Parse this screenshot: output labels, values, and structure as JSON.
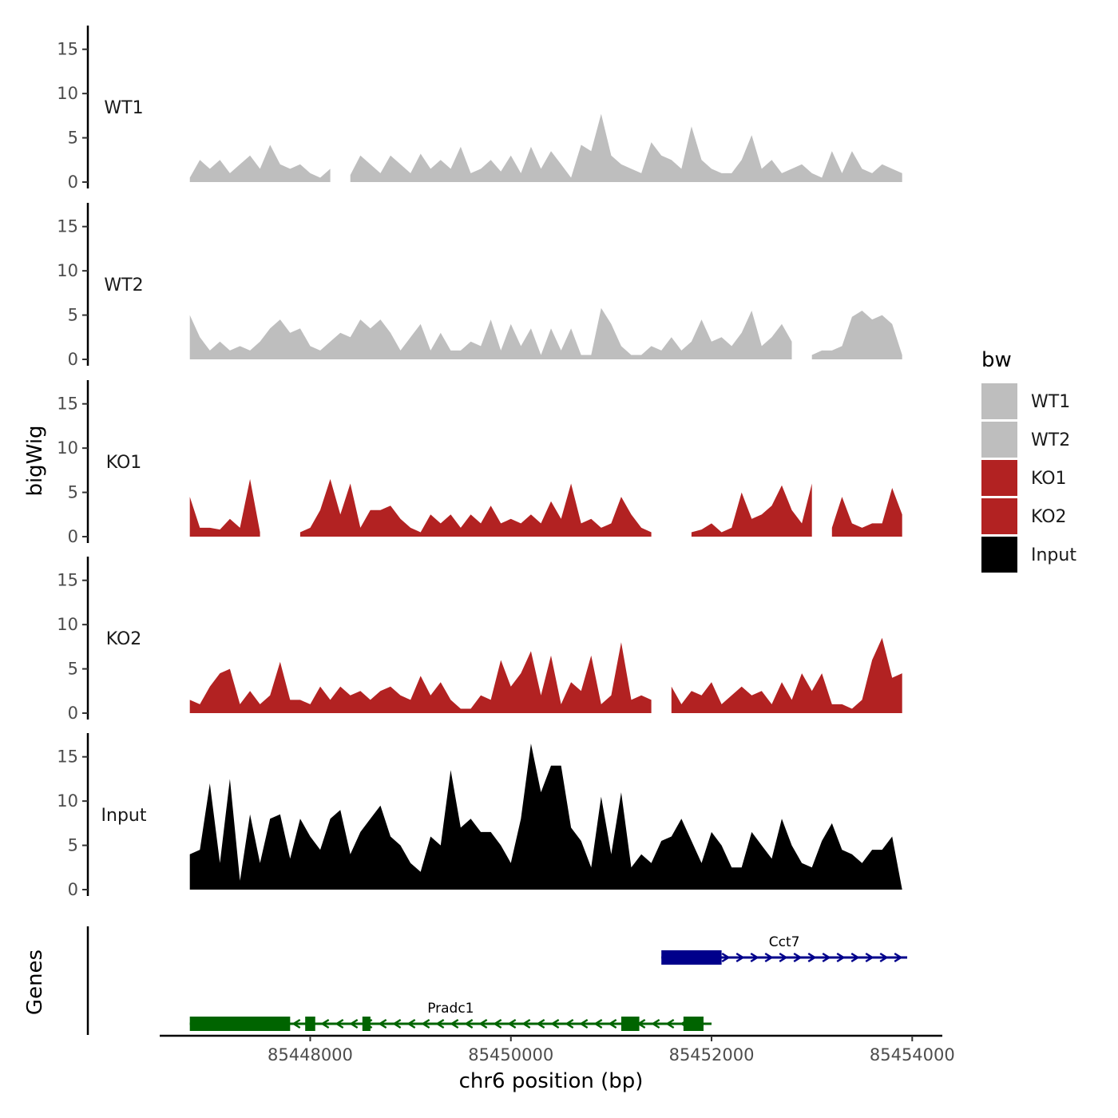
{
  "chart_data": {
    "type": "area",
    "chromosome": "chr6",
    "xlabel": "chr6 position (bp)",
    "ylabel": "bigWig",
    "genes_label": "Genes",
    "xlim": [
      85446500,
      85454300
    ],
    "xticks": [
      85448000,
      85450000,
      85452000,
      85454000
    ],
    "xtick_labels": [
      "85448000",
      "85450000",
      "85452000",
      "85454000"
    ],
    "ylim": [
      0,
      17.5
    ],
    "yticks": [
      0,
      5,
      10,
      15
    ],
    "ytick_labels": [
      "0",
      "5",
      "10",
      "15"
    ],
    "legend": {
      "title": "bw",
      "position": "right",
      "entries": [
        {
          "label": "WT1",
          "color": "#bebebe"
        },
        {
          "label": "WT2",
          "color": "#bebebe"
        },
        {
          "label": "KO1",
          "color": "#b22222"
        },
        {
          "label": "KO2",
          "color": "#b22222"
        },
        {
          "label": "Input",
          "color": "#000000"
        }
      ]
    },
    "series": [
      {
        "name": "WT1",
        "color": "#bebebe",
        "x": [
          85446800,
          85446900,
          85447000,
          85447100,
          85447200,
          85447300,
          85447400,
          85447500,
          85447600,
          85447700,
          85447800,
          85447900,
          85448000,
          85448100,
          85448200,
          85448300,
          85448400,
          85448500,
          85448600,
          85448700,
          85448800,
          85448900,
          85449000,
          85449100,
          85449200,
          85449300,
          85449400,
          85449500,
          85449600,
          85449700,
          85449800,
          85449900,
          85450000,
          85450100,
          85450200,
          85450300,
          85450400,
          85450500,
          85450600,
          85450700,
          85450800,
          85450900,
          85451000,
          85451100,
          85451200,
          85451300,
          85451400,
          85451500,
          85451600,
          85451700,
          85451800,
          85451900,
          85452000,
          85452100,
          85452200,
          85452300,
          85452400,
          85452500,
          85452600,
          85452700,
          85452800,
          85452900,
          85453000,
          85453100,
          85453200,
          85453300,
          85453400,
          85453500,
          85453600,
          85453700,
          85453800,
          85453900
        ],
        "values": [
          0.5,
          2.5,
          1.5,
          2.5,
          1.0,
          2.0,
          3.0,
          1.5,
          4.2,
          2.0,
          1.5,
          2.0,
          1.0,
          0.5,
          1.5,
          null,
          0.8,
          3.0,
          2.0,
          1.0,
          3.0,
          2.0,
          1.0,
          3.2,
          1.5,
          2.5,
          1.5,
          4.0,
          1.0,
          1.5,
          2.5,
          1.2,
          3.0,
          1.0,
          4.0,
          1.5,
          3.5,
          2.0,
          0.5,
          4.2,
          3.5,
          7.7,
          3.0,
          2.0,
          1.5,
          1.0,
          4.5,
          3.0,
          2.5,
          1.5,
          6.3,
          2.5,
          1.5,
          1.0,
          1.0,
          2.5,
          5.3,
          1.5,
          2.5,
          1.0,
          1.5,
          2.0,
          1.0,
          0.5,
          3.5,
          1.0,
          3.5,
          1.5,
          1.0,
          2.0,
          1.5,
          1.0
        ]
      },
      {
        "name": "WT2",
        "color": "#bebebe",
        "x": [
          85446800,
          85446900,
          85447000,
          85447100,
          85447200,
          85447300,
          85447400,
          85447500,
          85447600,
          85447700,
          85447800,
          85447900,
          85448000,
          85448100,
          85448200,
          85448300,
          85448400,
          85448500,
          85448600,
          85448700,
          85448800,
          85448900,
          85449000,
          85449100,
          85449200,
          85449300,
          85449400,
          85449500,
          85449600,
          85449700,
          85449800,
          85449900,
          85450000,
          85450100,
          85450200,
          85450300,
          85450400,
          85450500,
          85450600,
          85450700,
          85450800,
          85450900,
          85451000,
          85451100,
          85451200,
          85451300,
          85451400,
          85451500,
          85451600,
          85451700,
          85451800,
          85451900,
          85452000,
          85452100,
          85452200,
          85452300,
          85452400,
          85452500,
          85452600,
          85452700,
          85452800,
          85452900,
          85453000,
          85453100,
          85453200,
          85453300,
          85453400,
          85453500,
          85453600,
          85453700,
          85453800,
          85453900
        ],
        "values": [
          5.0,
          2.5,
          1.0,
          2.0,
          1.0,
          1.5,
          1.0,
          2.0,
          3.5,
          4.5,
          3.0,
          3.5,
          1.5,
          1.0,
          2.0,
          3.0,
          2.5,
          4.5,
          3.5,
          4.5,
          3.0,
          1.0,
          2.5,
          4.0,
          1.0,
          3.0,
          1.0,
          1.0,
          2.0,
          1.5,
          4.5,
          1.0,
          4.0,
          1.5,
          3.5,
          0.5,
          3.5,
          1.0,
          3.5,
          0.5,
          0.5,
          5.8,
          4.0,
          1.5,
          0.5,
          0.5,
          1.5,
          1.0,
          2.5,
          1.0,
          2.0,
          4.5,
          2.0,
          2.5,
          1.5,
          3.0,
          5.5,
          1.5,
          2.5,
          4.0,
          2.0,
          null,
          0.5,
          1.0,
          1.0,
          1.5,
          4.8,
          5.5,
          4.5,
          5.0,
          4.0,
          0.5
        ]
      },
      {
        "name": "KO1",
        "color": "#b22222",
        "x": [
          85446800,
          85446900,
          85447000,
          85447100,
          85447200,
          85447300,
          85447400,
          85447500,
          85447600,
          85447700,
          85447800,
          85447900,
          85448000,
          85448100,
          85448200,
          85448300,
          85448400,
          85448500,
          85448600,
          85448700,
          85448800,
          85448900,
          85449000,
          85449100,
          85449200,
          85449300,
          85449400,
          85449500,
          85449600,
          85449700,
          85449800,
          85449900,
          85450000,
          85450100,
          85450200,
          85450300,
          85450400,
          85450500,
          85450600,
          85450700,
          85450800,
          85450900,
          85451000,
          85451100,
          85451200,
          85451300,
          85451400,
          85451500,
          85451600,
          85451700,
          85451800,
          85451900,
          85452000,
          85452100,
          85452200,
          85452300,
          85452400,
          85452500,
          85452600,
          85452700,
          85452800,
          85452900,
          85453000,
          85453100,
          85453200,
          85453300,
          85453400,
          85453500,
          85453600,
          85453700,
          85453800,
          85453900
        ],
        "values": [
          4.5,
          1.0,
          1.0,
          0.8,
          2.0,
          1.0,
          6.5,
          0.5,
          null,
          null,
          null,
          0.5,
          1.0,
          3.0,
          6.5,
          2.5,
          6.0,
          1.0,
          3.0,
          3.0,
          3.5,
          2.0,
          1.0,
          0.5,
          2.5,
          1.5,
          2.5,
          1.0,
          2.5,
          1.5,
          3.5,
          1.5,
          2.0,
          1.5,
          2.5,
          1.5,
          4.0,
          2.0,
          6.0,
          1.5,
          2.0,
          1.0,
          1.5,
          4.5,
          2.5,
          1.0,
          0.5,
          null,
          null,
          null,
          0.5,
          0.8,
          1.5,
          0.5,
          1.0,
          5.0,
          2.0,
          2.5,
          3.5,
          5.8,
          3.0,
          1.5,
          6.0,
          null,
          1.0,
          4.5,
          1.5,
          1.0,
          1.5,
          1.5,
          5.5,
          2.5
        ]
      },
      {
        "name": "KO2",
        "color": "#b22222",
        "x": [
          85446800,
          85446900,
          85447000,
          85447100,
          85447200,
          85447300,
          85447400,
          85447500,
          85447600,
          85447700,
          85447800,
          85447900,
          85448000,
          85448100,
          85448200,
          85448300,
          85448400,
          85448500,
          85448600,
          85448700,
          85448800,
          85448900,
          85449000,
          85449100,
          85449200,
          85449300,
          85449400,
          85449500,
          85449600,
          85449700,
          85449800,
          85449900,
          85450000,
          85450100,
          85450200,
          85450300,
          85450400,
          85450500,
          85450600,
          85450700,
          85450800,
          85450900,
          85451000,
          85451100,
          85451200,
          85451300,
          85451400,
          85451500,
          85451600,
          85451700,
          85451800,
          85451900,
          85452000,
          85452100,
          85452200,
          85452300,
          85452400,
          85452500,
          85452600,
          85452700,
          85452800,
          85452900,
          85453000,
          85453100,
          85453200,
          85453300,
          85453400,
          85453500,
          85453600,
          85453700,
          85453800,
          85453900
        ],
        "values": [
          1.5,
          1.0,
          3.0,
          4.5,
          5.0,
          1.0,
          2.5,
          1.0,
          2.0,
          5.8,
          1.5,
          1.5,
          1.0,
          3.0,
          1.5,
          3.0,
          2.0,
          2.5,
          1.5,
          2.5,
          3.0,
          2.0,
          1.5,
          4.2,
          2.0,
          3.5,
          1.5,
          0.5,
          0.5,
          2.0,
          1.5,
          6.0,
          3.0,
          4.5,
          7.0,
          2.0,
          6.5,
          1.0,
          3.5,
          2.5,
          6.5,
          1.0,
          2.0,
          8.0,
          1.5,
          2.0,
          1.5,
          null,
          3.0,
          1.0,
          2.5,
          2.0,
          3.5,
          1.0,
          2.0,
          3.0,
          2.0,
          2.5,
          1.0,
          3.5,
          1.5,
          4.5,
          2.5,
          4.5,
          1.0,
          1.0,
          0.5,
          1.5,
          6.0,
          8.5,
          4.0,
          4.5
        ]
      },
      {
        "name": "Input",
        "color": "#000000",
        "x": [
          85446800,
          85446900,
          85447000,
          85447100,
          85447200,
          85447300,
          85447400,
          85447500,
          85447600,
          85447700,
          85447800,
          85447900,
          85448000,
          85448100,
          85448200,
          85448300,
          85448400,
          85448500,
          85448600,
          85448700,
          85448800,
          85448900,
          85449000,
          85449100,
          85449200,
          85449300,
          85449400,
          85449500,
          85449600,
          85449700,
          85449800,
          85449900,
          85450000,
          85450100,
          85450200,
          85450300,
          85450400,
          85450500,
          85450600,
          85450700,
          85450800,
          85450900,
          85451000,
          85451100,
          85451200,
          85451300,
          85451400,
          85451500,
          85451600,
          85451700,
          85451800,
          85451900,
          85452000,
          85452100,
          85452200,
          85452300,
          85452400,
          85452500,
          85452600,
          85452700,
          85452800,
          85452900,
          85453000,
          85453100,
          85453200,
          85453300,
          85453400,
          85453500,
          85453600,
          85453700,
          85453800,
          85453900
        ],
        "values": [
          4.0,
          4.5,
          12.0,
          3.0,
          12.5,
          1.0,
          8.5,
          3.0,
          8.0,
          8.5,
          3.5,
          8.0,
          6.0,
          4.5,
          8.0,
          9.0,
          4.0,
          6.5,
          8.0,
          9.5,
          6.0,
          5.0,
          3.0,
          2.0,
          6.0,
          5.0,
          13.5,
          7.0,
          8.0,
          6.5,
          6.5,
          5.0,
          3.0,
          8.0,
          16.5,
          11.0,
          14.0,
          14.0,
          7.0,
          5.5,
          2.5,
          10.5,
          4.0,
          11.0,
          2.5,
          4.0,
          3.0,
          5.5,
          6.0,
          8.0,
          5.5,
          3.0,
          6.5,
          5.0,
          2.5,
          2.5,
          6.5,
          5.0,
          3.5,
          8.0,
          5.0,
          3.0,
          2.5,
          5.5,
          7.5,
          4.5,
          4.0,
          3.0,
          4.5,
          4.5,
          6.0,
          0.0
        ]
      }
    ],
    "genes": [
      {
        "name": "Cct7",
        "strand": "+",
        "color": "#00008b",
        "row": 1,
        "start": 85451500,
        "end": 85453950,
        "exons": [
          [
            85451500,
            85452100
          ]
        ]
      },
      {
        "name": "Pradc1",
        "strand": "-",
        "color": "#006400",
        "row": 2,
        "start": 85446800,
        "end": 85452000,
        "exons": [
          [
            85446800,
            85447800
          ],
          [
            85447950,
            85448050
          ],
          [
            85448520,
            85448600
          ],
          [
            85451100,
            85451280
          ],
          [
            85451720,
            85451920
          ]
        ]
      }
    ]
  }
}
